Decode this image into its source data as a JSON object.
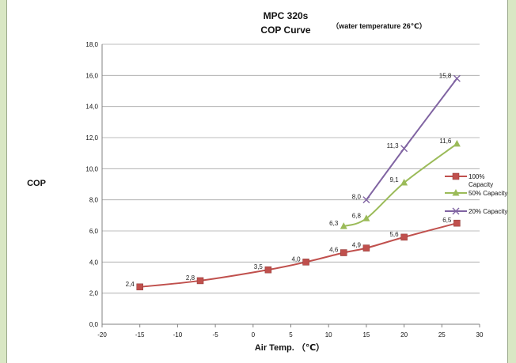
{
  "chart_data": {
    "type": "line",
    "title": "MPC 320s",
    "subtitle": "COP Curve",
    "note": "（water temperature 26℃）",
    "xlabel": "Air Temp. （℃）",
    "ylabel": "COP",
    "xlim": [
      -20,
      30
    ],
    "ylim": [
      0,
      18
    ],
    "x_ticks": [
      "-20",
      "-15",
      "-10",
      "-5",
      "0",
      "5",
      "10",
      "15",
      "20",
      "25",
      "30"
    ],
    "y_ticks": [
      "0,0",
      "2,0",
      "4,0",
      "6,0",
      "8,0",
      "10,0",
      "12,0",
      "14,0",
      "16,0",
      "18,0"
    ],
    "grid": true,
    "legend_position": "right",
    "series": [
      {
        "name": "100% Capacity",
        "color": "#c0504d",
        "marker": "square",
        "points": [
          {
            "x": -15,
            "y": 2.4,
            "label": "2,4"
          },
          {
            "x": -7,
            "y": 2.8,
            "label": "2,8"
          },
          {
            "x": 2,
            "y": 3.5,
            "label": "3,5"
          },
          {
            "x": 7,
            "y": 4.0,
            "label": "4,0"
          },
          {
            "x": 12,
            "y": 4.6,
            "label": "4,6"
          },
          {
            "x": 15,
            "y": 4.9,
            "label": "4,9"
          },
          {
            "x": 20,
            "y": 5.6,
            "label": "5,6"
          },
          {
            "x": 27,
            "y": 6.5,
            "label": "6,5"
          }
        ]
      },
      {
        "name": "50% Capacity",
        "color": "#9bbb59",
        "marker": "triangle",
        "points": [
          {
            "x": 12,
            "y": 6.3,
            "label": "6,3"
          },
          {
            "x": 15,
            "y": 6.8,
            "label": "6,8"
          },
          {
            "x": 20,
            "y": 9.1,
            "label": "9,1"
          },
          {
            "x": 27,
            "y": 11.6,
            "label": "11,6"
          }
        ]
      },
      {
        "name": "20% Capacity",
        "color": "#8064a2",
        "marker": "x",
        "points": [
          {
            "x": 15,
            "y": 8.0,
            "label": "8,0"
          },
          {
            "x": 20,
            "y": 11.3,
            "label": "11,3"
          },
          {
            "x": 27,
            "y": 15.8,
            "label": "15,8"
          }
        ]
      }
    ]
  }
}
